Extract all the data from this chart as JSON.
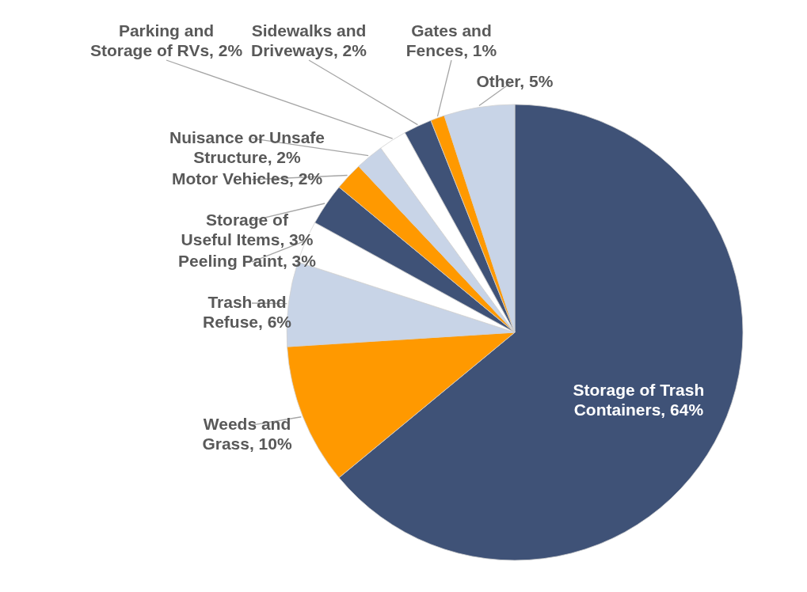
{
  "chart_data": {
    "type": "pie",
    "categories": [
      "Storage of Trash Containers",
      "Weeds and Grass",
      "Trash and Refuse",
      "Peeling Paint",
      "Storage of Useful Items",
      "Motor Vehicles",
      "Nuisance or Unsafe Structure",
      "Parking and Storage of RVs",
      "Sidewalks and Driveways",
      "Gates and Fences",
      "Other"
    ],
    "values": [
      64,
      10,
      6,
      3,
      3,
      2,
      2,
      2,
      2,
      1,
      5
    ],
    "value_labels": [
      "64%",
      "10%",
      "6%",
      "3%",
      "3%",
      "2%",
      "2%",
      "2%",
      "2%",
      "1%",
      "5%"
    ],
    "colors": [
      "#3f5277",
      "#ff9900",
      "#c8d4e7",
      "#ffffff",
      "#3f5277",
      "#ff9900",
      "#c8d4e7",
      "#ffffff",
      "#3f5277",
      "#ff9900",
      "#c8d4e7"
    ]
  }
}
